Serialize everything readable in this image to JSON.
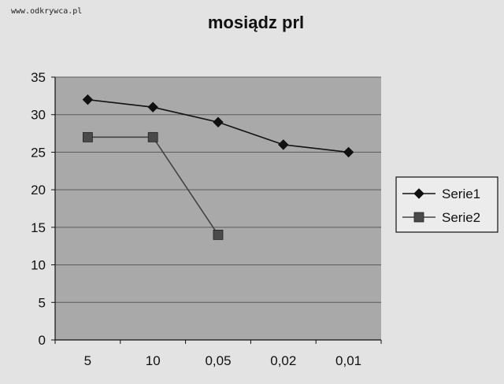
{
  "watermark": "www.odkrywca.pl",
  "chart_data": {
    "type": "line",
    "title": "mosiądz prl",
    "xlabel": "",
    "ylabel": "",
    "categories": [
      "5",
      "10",
      "0,05",
      "0,02",
      "0,01"
    ],
    "ylim": [
      0,
      35
    ],
    "yticks": [
      0,
      5,
      10,
      15,
      20,
      25,
      30,
      35
    ],
    "grid": true,
    "legend_position": "right",
    "series": [
      {
        "name": "Serie1",
        "marker": "diamond",
        "values": [
          32,
          31,
          29,
          26,
          25
        ]
      },
      {
        "name": "Serie2",
        "marker": "square",
        "values": [
          27,
          27,
          14,
          null,
          null
        ]
      }
    ],
    "colors": {
      "plot_background": "#a9a9a9",
      "gridline": "#5b5b5b",
      "serie1": "#111111",
      "serie2": "#444444",
      "serie2_marker": "#4a4a4a"
    }
  }
}
